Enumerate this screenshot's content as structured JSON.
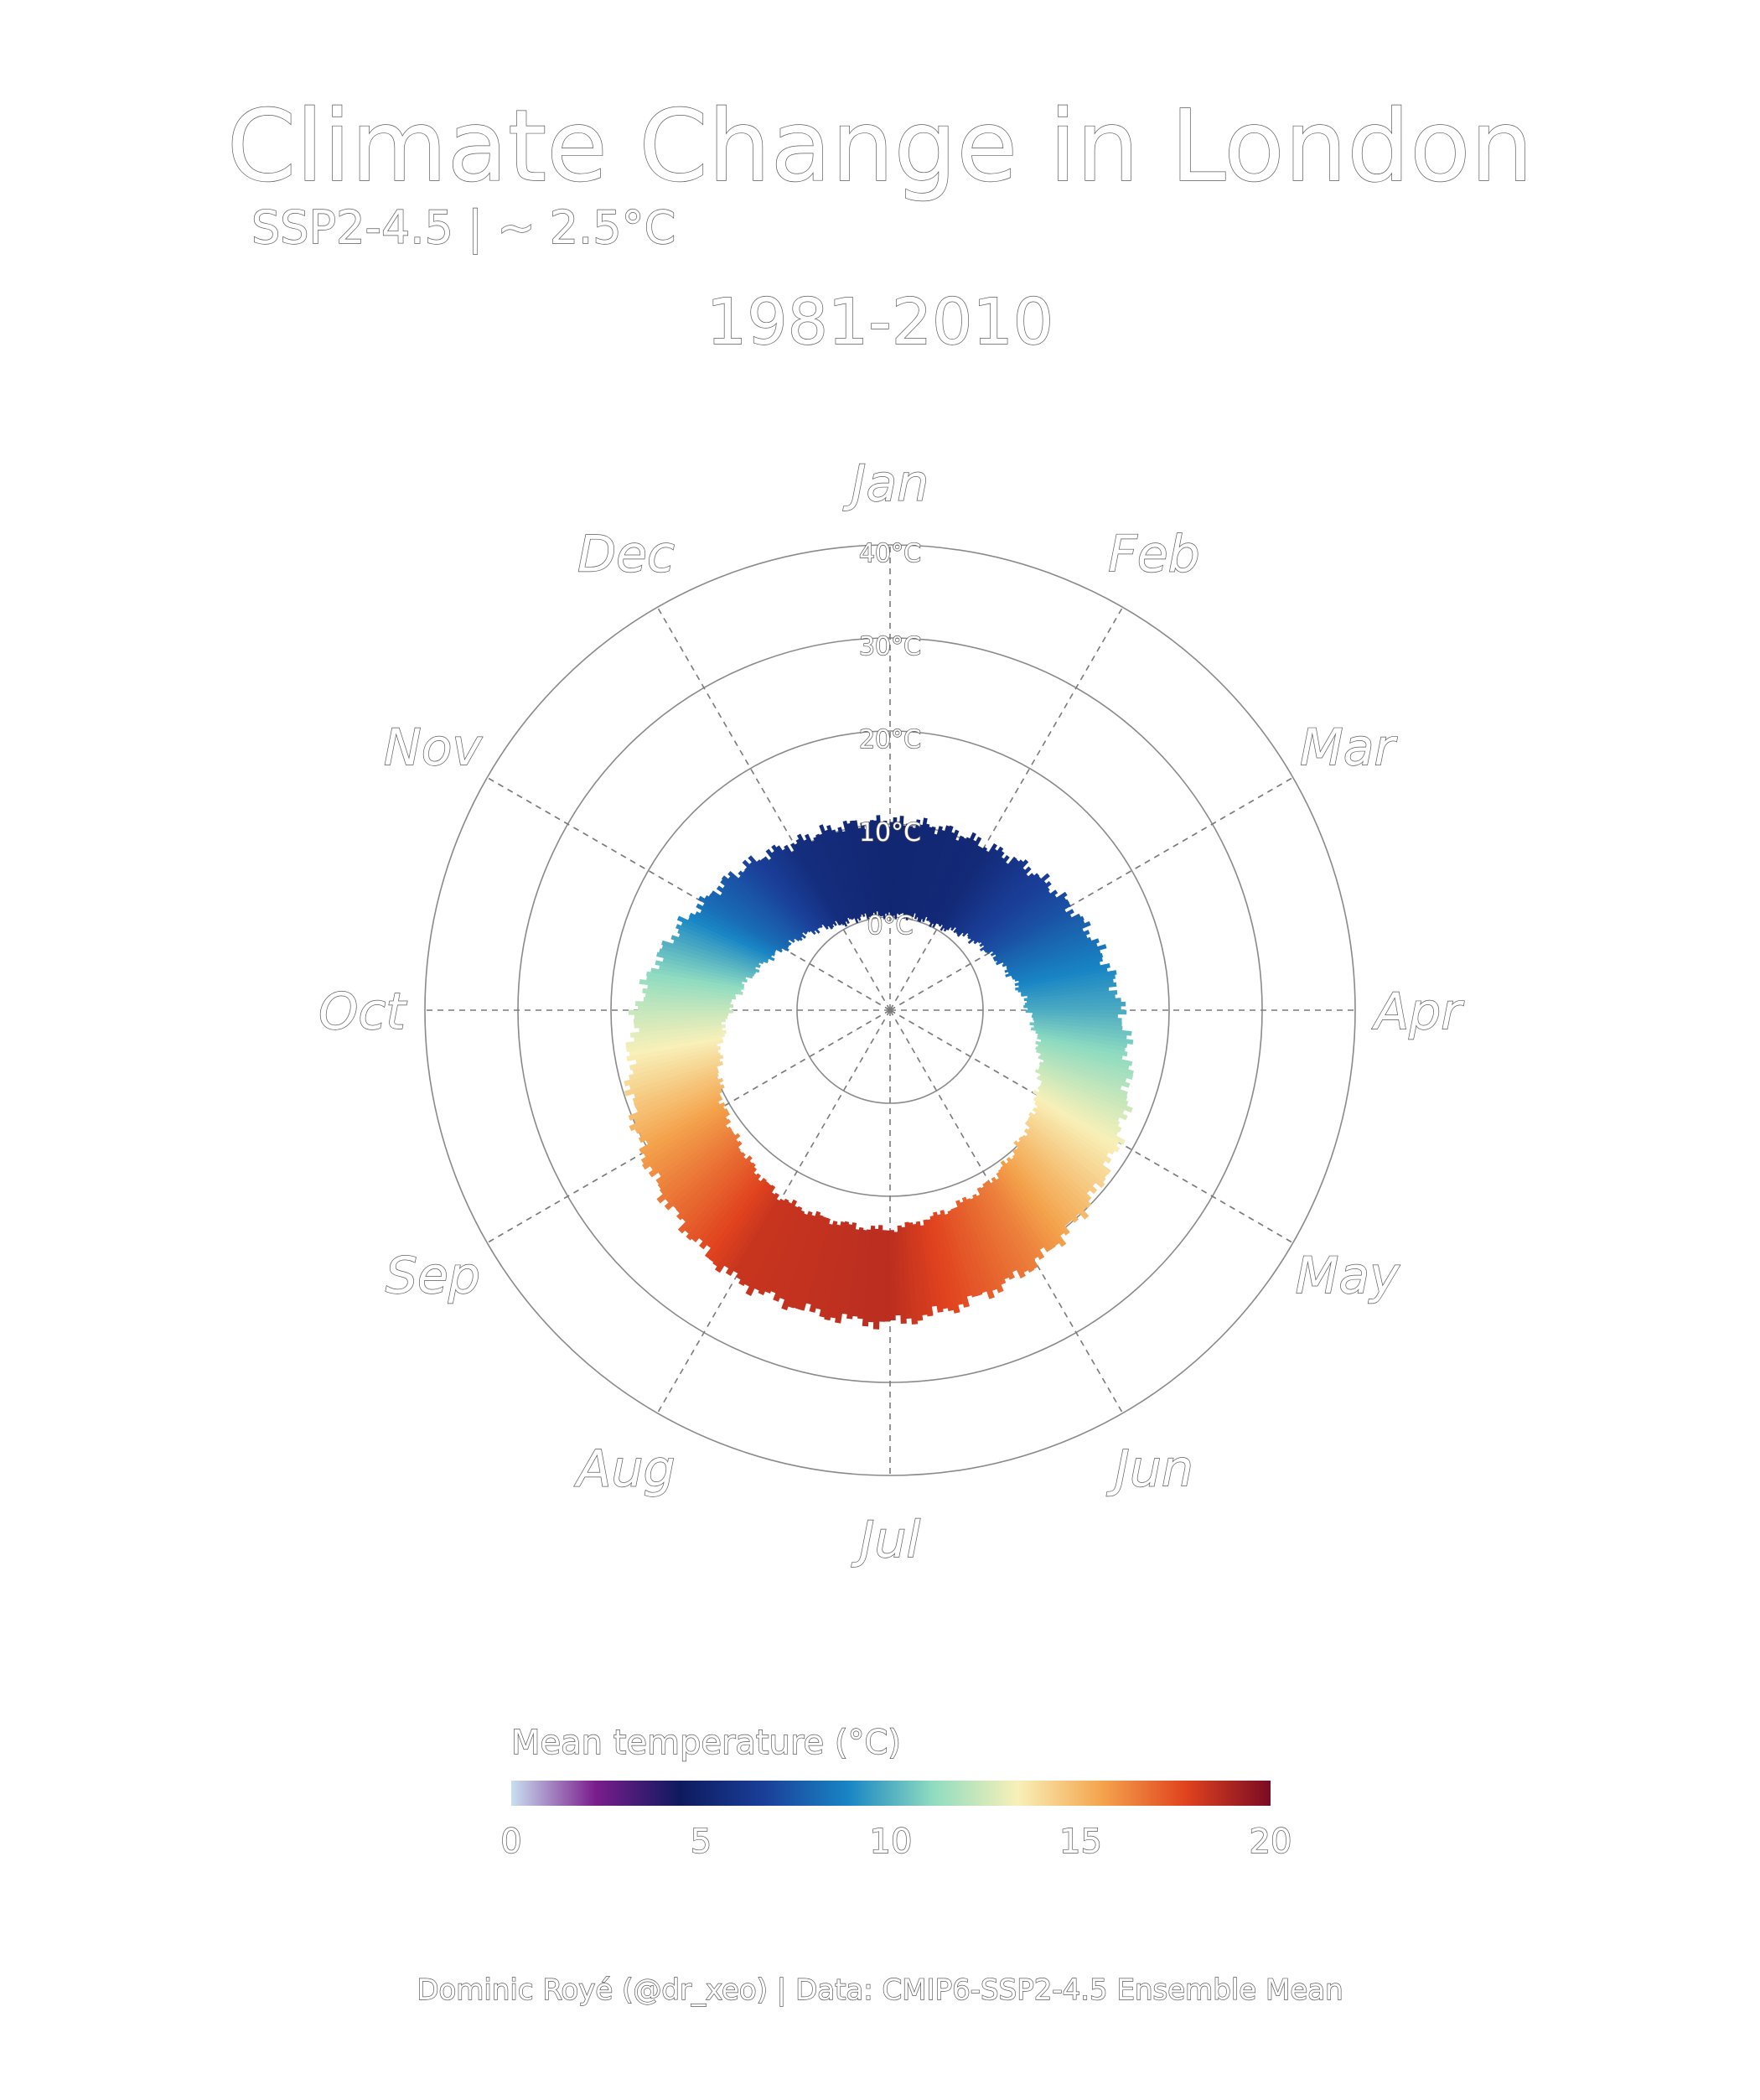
{
  "title": "Climate Change in London",
  "subtitle": "SSP2-4.5 | ~ 2.5°C",
  "period": "1981-2010",
  "caption": "Dominic Royé (@dr_xeo) | Data: CMIP6-SSP2-4.5 Ensemble Mean",
  "chart_data": {
    "type": "bar",
    "coordinate_system": "polar",
    "months": [
      "Jan",
      "Feb",
      "Mar",
      "Apr",
      "May",
      "Jun",
      "Jul",
      "Aug",
      "Sep",
      "Oct",
      "Nov",
      "Dec"
    ],
    "radial_ticks": [
      "0°C",
      "10°C",
      "20°C",
      "30°C",
      "40°C"
    ],
    "radial_tick_values": [
      0,
      10,
      20,
      30,
      40
    ],
    "radial_range": [
      -10,
      40
    ],
    "grid": true,
    "series": [
      {
        "values": [
          5.2,
          5.4,
          7.3,
          9.9,
          13.3,
          16.4,
          18.6,
          18.3,
          15.6,
          12.2,
          8.1,
          5.6
        ]
      }
    ],
    "day_sample_variation": 0.8,
    "legend": {
      "title": "Mean temperature (°C)",
      "ticks": [
        "0",
        "5",
        "10",
        "15",
        "20"
      ],
      "tick_values": [
        0,
        5,
        10,
        15,
        20
      ],
      "range": [
        0,
        20
      ],
      "placement": "bottom",
      "colors": [
        "#c9dff0",
        "#7a1d8c",
        "#0e1a5e",
        "#1a3f99",
        "#1985c4",
        "#8fdcc0",
        "#f8f0b8",
        "#f4a44d",
        "#e0421e",
        "#7a0b23"
      ]
    }
  }
}
